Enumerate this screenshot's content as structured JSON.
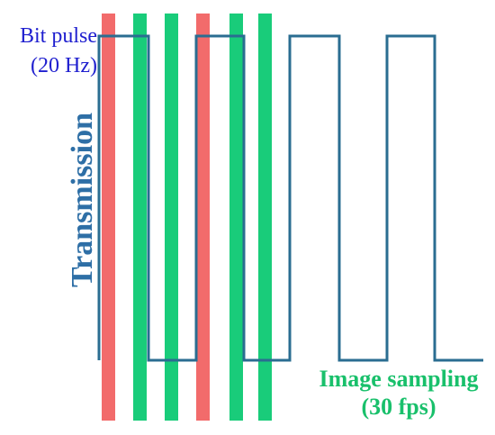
{
  "labels": {
    "bit_pulse_line1": "Bit pulse",
    "bit_pulse_line2": "(20 Hz)",
    "transmission": "Transmission",
    "sampling_line1": "Image sampling",
    "sampling_line2": "(30 fps)"
  },
  "colors": {
    "pulse_line": "#2a6d91",
    "bit_label": "#1f1fcf",
    "transmission_label": "#2e6fa6",
    "red_bar": "#f26b6b",
    "green_bar": "#19cc7a",
    "sampling_label": "#19c06b"
  },
  "bars": [
    {
      "color": "red"
    },
    {
      "color": "green"
    },
    {
      "color": "green"
    },
    {
      "color": "red"
    },
    {
      "color": "green"
    },
    {
      "color": "green"
    }
  ]
}
